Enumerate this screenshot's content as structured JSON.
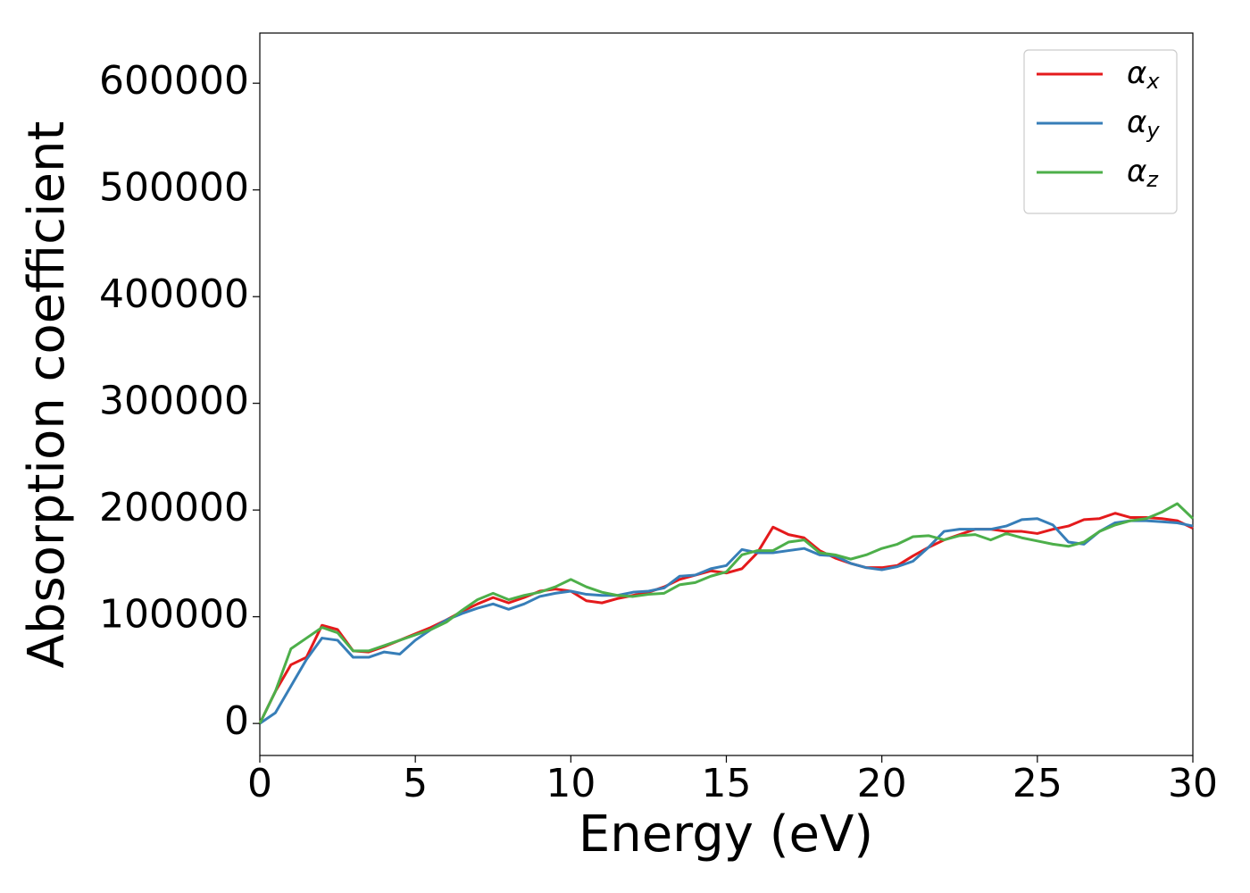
{
  "chart_data": {
    "type": "line",
    "xlabel": "Energy (eV)",
    "ylabel": "Absorption coefficient",
    "x": [
      0,
      0.5,
      1,
      1.5,
      2,
      2.5,
      3,
      3.5,
      4,
      4.5,
      5,
      5.5,
      6,
      6.5,
      7,
      7.5,
      8,
      8.5,
      9,
      9.5,
      10,
      10.5,
      11,
      11.5,
      12,
      12.5,
      13,
      13.5,
      14,
      14.5,
      15,
      15.5,
      16,
      16.5,
      17,
      17.5,
      18,
      18.5,
      19,
      19.5,
      20,
      20.5,
      21,
      21.5,
      22,
      22.5,
      23,
      23.5,
      24,
      24.5,
      25,
      25.5,
      26,
      26.5,
      27,
      27.5,
      28,
      28.5,
      29,
      29.5,
      30
    ],
    "series": [
      {
        "name": "αx",
        "color": "#e41a1c",
        "values": [
          0,
          30000,
          55000,
          62000,
          92000,
          88000,
          68000,
          67000,
          72000,
          78000,
          84000,
          90000,
          97000,
          105000,
          112000,
          118000,
          113000,
          118000,
          124000,
          126000,
          124000,
          115000,
          113000,
          117000,
          120000,
          123000,
          128000,
          135000,
          139000,
          143000,
          141000,
          145000,
          160000,
          184000,
          177000,
          174000,
          162000,
          155000,
          150000,
          146000,
          146000,
          148000,
          157000,
          165000,
          172000,
          177000,
          182000,
          182000,
          180000,
          180000,
          178000,
          182000,
          185000,
          191000,
          192000,
          197000,
          193000,
          193000,
          192000,
          190000,
          183000
        ]
      },
      {
        "name": "αy",
        "color": "#377eb8",
        "values": [
          0,
          10000,
          35000,
          60000,
          80000,
          78000,
          62000,
          62000,
          67000,
          65000,
          78000,
          88000,
          97000,
          103000,
          108000,
          112000,
          107000,
          112000,
          119000,
          122000,
          124000,
          121000,
          120000,
          120000,
          123000,
          124000,
          127000,
          138000,
          139000,
          145000,
          148000,
          163000,
          160000,
          160000,
          162000,
          164000,
          158000,
          157000,
          150000,
          146000,
          144000,
          147000,
          152000,
          165000,
          180000,
          182000,
          182000,
          182000,
          185000,
          191000,
          192000,
          186000,
          170000,
          168000,
          180000,
          188000,
          190000,
          190000,
          189000,
          188000,
          185000
        ]
      },
      {
        "name": "αz",
        "color": "#4daf4a",
        "values": [
          0,
          30000,
          70000,
          80000,
          90000,
          85000,
          68000,
          68000,
          73000,
          78000,
          83000,
          88000,
          95000,
          106000,
          116000,
          122000,
          116000,
          120000,
          123000,
          128000,
          135000,
          128000,
          123000,
          120000,
          119000,
          121000,
          122000,
          130000,
          132000,
          138000,
          142000,
          158000,
          162000,
          162000,
          170000,
          172000,
          160000,
          158000,
          154000,
          158000,
          164000,
          168000,
          175000,
          176000,
          172000,
          176000,
          177000,
          172000,
          178000,
          174000,
          171000,
          168000,
          166000,
          170000,
          180000,
          186000,
          190000,
          192000,
          198000,
          206000,
          192000
        ]
      }
    ],
    "xlim": [
      0,
      30
    ],
    "xticks": [
      0,
      5,
      10,
      15,
      20,
      25,
      30
    ],
    "ylim": [
      -30000,
      647000
    ],
    "yticks": [
      0,
      100000,
      200000,
      300000,
      400000,
      500000,
      600000
    ],
    "legend": "upper right"
  }
}
